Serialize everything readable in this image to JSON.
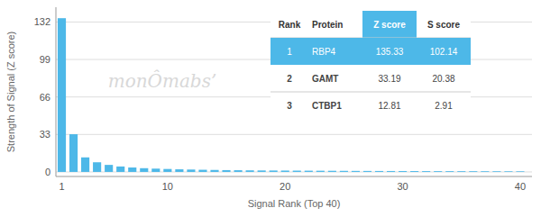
{
  "chart_data": {
    "type": "bar",
    "xlabel": "Signal Rank (Top 40)",
    "ylabel": "Strength of Signal (Z score)",
    "x": [
      1,
      2,
      3,
      4,
      5,
      6,
      7,
      8,
      9,
      10,
      11,
      12,
      13,
      14,
      15,
      16,
      17,
      18,
      19,
      20,
      21,
      22,
      23,
      24,
      25,
      26,
      27,
      28,
      29,
      30,
      31,
      32,
      33,
      34,
      35,
      36,
      37,
      38,
      39,
      40
    ],
    "values": [
      135.33,
      33.19,
      12.81,
      8.5,
      6.2,
      4.8,
      3.9,
      3.3,
      2.9,
      2.6,
      2.3,
      2.1,
      1.9,
      1.75,
      1.6,
      1.5,
      1.4,
      1.3,
      1.25,
      1.2,
      1.15,
      1.1,
      1.05,
      1.0,
      0.95,
      0.9,
      0.87,
      0.84,
      0.81,
      0.78,
      0.75,
      0.72,
      0.69,
      0.67,
      0.65,
      0.63,
      0.61,
      0.59,
      0.57,
      0.55
    ],
    "color": "#4db8e8",
    "xlim": [
      0.5,
      41
    ],
    "xticks": [
      1,
      10,
      20,
      30,
      40
    ],
    "ylim": [
      -4,
      145
    ],
    "yticks": [
      0,
      33,
      66,
      99,
      132
    ],
    "grid": true,
    "annotations": [
      "monÔmabs’"
    ],
    "table": {
      "columns": [
        "Rank",
        "Protein",
        "Z score",
        "S score"
      ],
      "rows": [
        [
          "1",
          "RBP4",
          "135.33",
          "102.14"
        ],
        [
          "2",
          "GAMT",
          "33.19",
          "20.38"
        ],
        [
          "3",
          "CTBP1",
          "12.81",
          "2.91"
        ]
      ]
    }
  }
}
